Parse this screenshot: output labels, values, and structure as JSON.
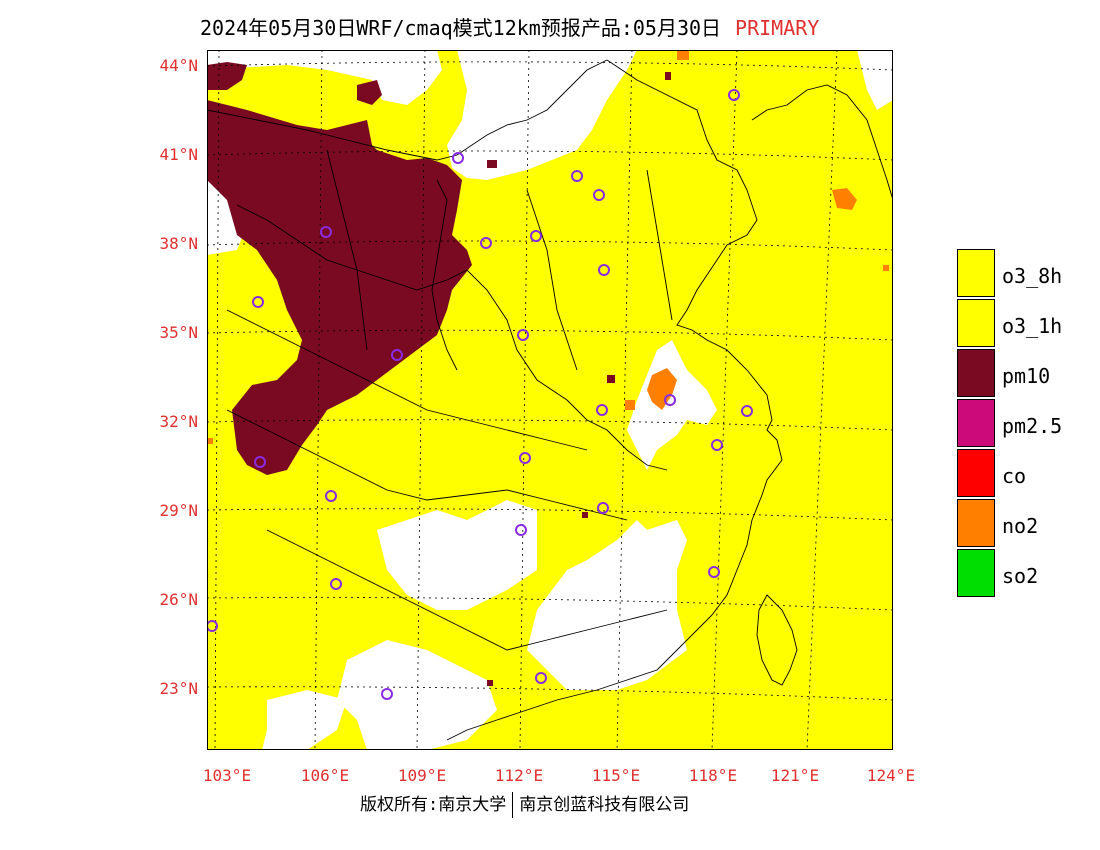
{
  "title": {
    "main": "2024年05月30日WRF/cmaq模式12km预报产品:05月30日",
    "tag": "PRIMARY"
  },
  "axes": {
    "lat_labels": [
      "44°N",
      "41°N",
      "38°N",
      "35°N",
      "32°N",
      "29°N",
      "26°N",
      "23°N"
    ],
    "lon_labels": [
      "103°E",
      "106°E",
      "109°E",
      "112°E",
      "115°E",
      "118°E",
      "121°E",
      "124°E"
    ]
  },
  "legend": [
    {
      "label": "o3_8h",
      "color": "#ffff00"
    },
    {
      "label": "o3_1h",
      "color": "#ffff00"
    },
    {
      "label": "pm10",
      "color": "#7a0a22"
    },
    {
      "label": "pm2.5",
      "color": "#cc0a7a"
    },
    {
      "label": "co",
      "color": "#ff0000"
    },
    {
      "label": "no2",
      "color": "#ff7f00"
    },
    {
      "label": "so2",
      "color": "#00dd00"
    }
  ],
  "footer": {
    "left": "版权所有:南京大学",
    "right": "南京创蓝科技有限公司"
  },
  "colors": {
    "o3": "#ffff00",
    "pm10": "#7a0a22",
    "no2": "#ff7f00",
    "axis_label": "#e03030",
    "city_marker": "#8a2be2"
  }
}
